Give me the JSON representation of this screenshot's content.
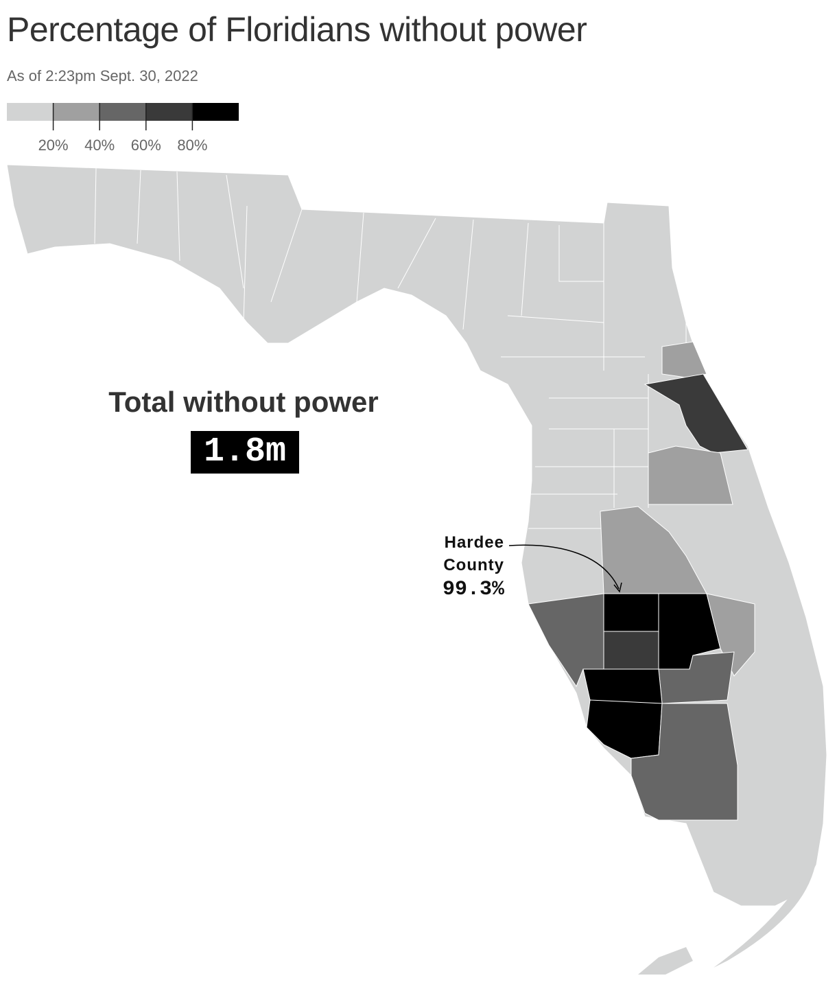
{
  "chart_data": {
    "type": "choropleth",
    "title": "Percentage of Floridians without power",
    "subtitle": "As of 2:23pm Sept. 30, 2022",
    "legend": {
      "range": [
        0,
        100
      ],
      "colors": [
        "#d2d3d3",
        "#a0a0a0",
        "#666666",
        "#3a3a3a",
        "#000000"
      ],
      "ticks": [
        {
          "value": 20,
          "label": "20%"
        },
        {
          "value": 40,
          "label": "40%"
        },
        {
          "value": 60,
          "label": "60%"
        },
        {
          "value": 80,
          "label": "80%"
        }
      ]
    },
    "total_label": "Total without power",
    "total_value": 1800000,
    "total_value_label": "1.8m",
    "annotation": {
      "label": "Hardee County",
      "value": 99.3,
      "value_label": "99.3%"
    },
    "regions": [
      10,
      30,
      70,
      30,
      35,
      50,
      75,
      85,
      30,
      50,
      90,
      90,
      50
    ]
  }
}
